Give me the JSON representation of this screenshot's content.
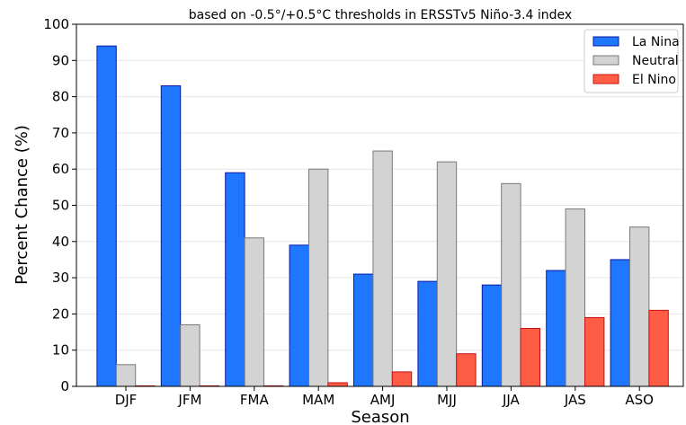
{
  "chart_data": {
    "type": "bar",
    "title": "based on -0.5°/+0.5°C thresholds in ERSSTv5 Niño-3.4 index",
    "xlabel": "Season",
    "ylabel": "Percent Chance (%)",
    "ylim": [
      0,
      100
    ],
    "yticks": [
      0,
      10,
      20,
      30,
      40,
      50,
      60,
      70,
      80,
      90,
      100
    ],
    "grid": "horizontal",
    "legend_position": "top-right",
    "categories": [
      "DJF",
      "JFM",
      "FMA",
      "MAM",
      "AMJ",
      "MJJ",
      "JJA",
      "JAS",
      "ASO"
    ],
    "series": [
      {
        "name": "La Nina",
        "color": "#1f77ff",
        "edge": "#0a1aa0",
        "values": [
          94,
          83,
          59,
          39,
          31,
          29,
          28,
          32,
          35
        ]
      },
      {
        "name": "Neutral",
        "color": "#d3d3d3",
        "edge": "#7a7a7a",
        "values": [
          6,
          17,
          41,
          60,
          65,
          62,
          56,
          49,
          44
        ]
      },
      {
        "name": "El Nino",
        "color": "#ff5c45",
        "edge": "#c81010",
        "values": [
          0,
          0,
          0,
          1,
          4,
          9,
          16,
          19,
          21
        ]
      }
    ]
  }
}
